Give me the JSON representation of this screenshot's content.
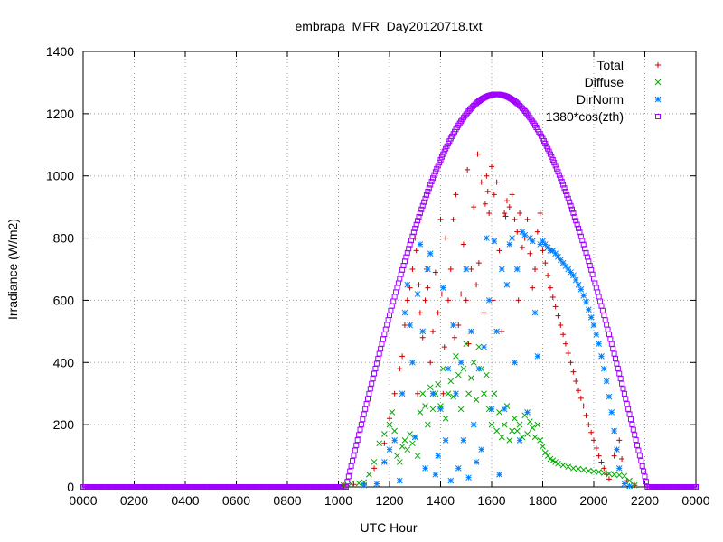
{
  "chart_data": {
    "type": "scatter",
    "title": "embrapa_MFR_Day20120718.txt",
    "xlabel": "UTC Hour",
    "ylabel": "Irradiance (W/m2)",
    "xlim": [
      0,
      24
    ],
    "ylim": [
      0,
      1400
    ],
    "x_ticks": [
      0,
      2,
      4,
      6,
      8,
      10,
      12,
      14,
      16,
      18,
      20,
      22,
      24
    ],
    "x_tick_labels": [
      "0000",
      "0200",
      "0400",
      "0600",
      "0800",
      "1000",
      "1200",
      "1400",
      "1600",
      "1800",
      "2000",
      "2200",
      "0000"
    ],
    "y_ticks": [
      0,
      200,
      400,
      600,
      800,
      1000,
      1200,
      1400
    ],
    "y_tick_labels": [
      "0",
      "200",
      "400",
      "600",
      "800",
      "1000",
      "1200",
      "1400"
    ],
    "grid": true,
    "legend_position": "top-right",
    "series": [
      {
        "name": "Total",
        "marker": "plus",
        "color": "#cc0000",
        "points": [
          [
            10.2,
            5
          ],
          [
            10.6,
            8
          ],
          [
            11.0,
            10
          ],
          [
            11.4,
            60
          ],
          [
            11.8,
            140
          ],
          [
            12.0,
            220
          ],
          [
            12.2,
            300
          ],
          [
            12.4,
            380
          ],
          [
            12.5,
            420
          ],
          [
            12.6,
            520
          ],
          [
            12.7,
            600
          ],
          [
            12.8,
            640
          ],
          [
            12.9,
            700
          ],
          [
            13.0,
            800
          ],
          [
            13.05,
            760
          ],
          [
            13.1,
            300
          ],
          [
            13.15,
            650
          ],
          [
            13.2,
            560
          ],
          [
            13.3,
            480
          ],
          [
            13.4,
            600
          ],
          [
            13.45,
            700
          ],
          [
            13.5,
            640
          ],
          [
            13.6,
            400
          ],
          [
            13.7,
            500
          ],
          [
            13.8,
            690
          ],
          [
            13.9,
            560
          ],
          [
            14.0,
            860
          ],
          [
            14.05,
            620
          ],
          [
            14.1,
            300
          ],
          [
            14.15,
            450
          ],
          [
            14.2,
            800
          ],
          [
            14.3,
            600
          ],
          [
            14.4,
            700
          ],
          [
            14.5,
            860
          ],
          [
            14.55,
            480
          ],
          [
            14.6,
            940
          ],
          [
            14.7,
            520
          ],
          [
            14.8,
            620
          ],
          [
            14.9,
            780
          ],
          [
            15.0,
            600
          ],
          [
            15.05,
            1020
          ],
          [
            15.1,
            460
          ],
          [
            15.2,
            700
          ],
          [
            15.3,
            900
          ],
          [
            15.4,
            650
          ],
          [
            15.45,
            1070
          ],
          [
            15.5,
            720
          ],
          [
            15.6,
            980
          ],
          [
            15.7,
            560
          ],
          [
            15.75,
            910
          ],
          [
            15.8,
            1000
          ],
          [
            15.85,
            950
          ],
          [
            15.9,
            880
          ],
          [
            16.0,
            1030
          ],
          [
            16.05,
            600
          ],
          [
            16.1,
            940
          ],
          [
            16.2,
            980
          ],
          [
            16.3,
            760
          ],
          [
            16.4,
            500
          ],
          [
            16.5,
            880
          ],
          [
            16.55,
            870
          ],
          [
            16.6,
            920
          ],
          [
            16.7,
            900
          ],
          [
            16.8,
            940
          ],
          [
            16.9,
            860
          ],
          [
            17.0,
            820
          ],
          [
            17.05,
            600
          ],
          [
            17.1,
            880
          ],
          [
            17.2,
            770
          ],
          [
            17.3,
            800
          ],
          [
            17.4,
            860
          ],
          [
            17.5,
            750
          ],
          [
            17.6,
            640
          ],
          [
            17.7,
            700
          ],
          [
            17.8,
            820
          ],
          [
            17.9,
            880
          ],
          [
            18.0,
            760
          ],
          [
            18.1,
            720
          ],
          [
            18.2,
            680
          ],
          [
            18.3,
            640
          ],
          [
            18.4,
            610
          ],
          [
            18.5,
            580
          ],
          [
            18.6,
            550
          ],
          [
            18.7,
            520
          ],
          [
            18.8,
            490
          ],
          [
            18.9,
            460
          ],
          [
            19.0,
            430
          ],
          [
            19.1,
            400
          ],
          [
            19.2,
            370
          ],
          [
            19.3,
            340
          ],
          [
            19.4,
            310
          ],
          [
            19.5,
            285
          ],
          [
            19.6,
            260
          ],
          [
            19.7,
            230
          ],
          [
            19.8,
            200
          ],
          [
            19.9,
            175
          ],
          [
            20.0,
            150
          ],
          [
            20.1,
            125
          ],
          [
            20.2,
            100
          ],
          [
            20.3,
            80
          ],
          [
            20.4,
            60
          ],
          [
            20.5,
            40
          ],
          [
            20.6,
            25
          ],
          [
            20.8,
            100
          ],
          [
            20.9,
            120
          ],
          [
            21.0,
            150
          ],
          [
            21.1,
            90
          ],
          [
            21.3,
            20
          ],
          [
            21.6,
            5
          ]
        ]
      },
      {
        "name": "Diffuse",
        "marker": "cross",
        "color": "#00aa00",
        "points": [
          [
            10.2,
            5
          ],
          [
            10.5,
            10
          ],
          [
            10.8,
            12
          ],
          [
            11.0,
            15
          ],
          [
            11.2,
            40
          ],
          [
            11.4,
            80
          ],
          [
            11.6,
            140
          ],
          [
            11.8,
            170
          ],
          [
            12.0,
            200
          ],
          [
            12.1,
            240
          ],
          [
            12.2,
            180
          ],
          [
            12.3,
            100
          ],
          [
            12.4,
            80
          ],
          [
            12.5,
            130
          ],
          [
            12.6,
            150
          ],
          [
            12.7,
            120
          ],
          [
            12.8,
            170
          ],
          [
            12.9,
            140
          ],
          [
            13.0,
            160
          ],
          [
            13.1,
            100
          ],
          [
            13.2,
            240
          ],
          [
            13.3,
            300
          ],
          [
            13.4,
            260
          ],
          [
            13.5,
            200
          ],
          [
            13.6,
            320
          ],
          [
            13.7,
            250
          ],
          [
            13.8,
            300
          ],
          [
            13.9,
            330
          ],
          [
            14.0,
            260
          ],
          [
            14.1,
            380
          ],
          [
            14.2,
            220
          ],
          [
            14.3,
            300
          ],
          [
            14.4,
            340
          ],
          [
            14.5,
            290
          ],
          [
            14.6,
            420
          ],
          [
            14.7,
            360
          ],
          [
            14.8,
            250
          ],
          [
            14.9,
            380
          ],
          [
            15.0,
            460
          ],
          [
            15.1,
            300
          ],
          [
            15.2,
            350
          ],
          [
            15.3,
            400
          ],
          [
            15.4,
            280
          ],
          [
            15.5,
            450
          ],
          [
            15.6,
            380
          ],
          [
            15.7,
            300
          ],
          [
            15.8,
            360
          ],
          [
            15.9,
            250
          ],
          [
            16.0,
            200
          ],
          [
            16.1,
            300
          ],
          [
            16.2,
            180
          ],
          [
            16.3,
            240
          ],
          [
            16.4,
            160
          ],
          [
            16.5,
            200
          ],
          [
            16.6,
            260
          ],
          [
            16.7,
            150
          ],
          [
            16.8,
            180
          ],
          [
            16.9,
            220
          ],
          [
            17.0,
            180
          ],
          [
            17.1,
            200
          ],
          [
            17.2,
            160
          ],
          [
            17.3,
            230
          ],
          [
            17.4,
            170
          ],
          [
            17.5,
            210
          ],
          [
            17.6,
            190
          ],
          [
            17.7,
            160
          ],
          [
            17.8,
            200
          ],
          [
            17.9,
            150
          ],
          [
            18.0,
            130
          ],
          [
            18.1,
            110
          ],
          [
            18.2,
            100
          ],
          [
            18.3,
            90
          ],
          [
            18.4,
            85
          ],
          [
            18.5,
            80
          ],
          [
            18.6,
            75
          ],
          [
            18.8,
            70
          ],
          [
            19.0,
            65
          ],
          [
            19.2,
            60
          ],
          [
            19.4,
            58
          ],
          [
            19.6,
            55
          ],
          [
            19.8,
            52
          ],
          [
            20.0,
            50
          ],
          [
            20.2,
            48
          ],
          [
            20.4,
            45
          ],
          [
            20.6,
            42
          ],
          [
            20.8,
            40
          ],
          [
            21.0,
            38
          ],
          [
            21.2,
            35
          ],
          [
            21.4,
            20
          ],
          [
            21.6,
            5
          ]
        ]
      },
      {
        "name": "DirNorm",
        "marker": "star",
        "color": "#0080ff",
        "points": [
          [
            11.0,
            5
          ],
          [
            11.5,
            10
          ],
          [
            11.8,
            80
          ],
          [
            12.0,
            120
          ],
          [
            12.2,
            150
          ],
          [
            12.4,
            20
          ],
          [
            12.5,
            300
          ],
          [
            12.6,
            560
          ],
          [
            12.7,
            650
          ],
          [
            12.8,
            520
          ],
          [
            12.9,
            400
          ],
          [
            13.0,
            160
          ],
          [
            13.1,
            620
          ],
          [
            13.2,
            780
          ],
          [
            13.3,
            500
          ],
          [
            13.4,
            60
          ],
          [
            13.5,
            700
          ],
          [
            13.6,
            750
          ],
          [
            13.7,
            300
          ],
          [
            13.8,
            40
          ],
          [
            13.9,
            100
          ],
          [
            14.0,
            250
          ],
          [
            14.1,
            640
          ],
          [
            14.2,
            150
          ],
          [
            14.3,
            380
          ],
          [
            14.4,
            20
          ],
          [
            14.5,
            520
          ],
          [
            14.6,
            300
          ],
          [
            14.7,
            60
          ],
          [
            14.8,
            400
          ],
          [
            14.9,
            150
          ],
          [
            15.0,
            700
          ],
          [
            15.1,
            30
          ],
          [
            15.2,
            500
          ],
          [
            15.3,
            200
          ],
          [
            15.4,
            80
          ],
          [
            15.5,
            380
          ],
          [
            15.6,
            120
          ],
          [
            15.7,
            450
          ],
          [
            15.8,
            800
          ],
          [
            15.9,
            600
          ],
          [
            16.0,
            250
          ],
          [
            16.1,
            790
          ],
          [
            16.2,
            500
          ],
          [
            16.3,
            40
          ],
          [
            16.4,
            700
          ],
          [
            16.5,
            250
          ],
          [
            16.6,
            650
          ],
          [
            16.7,
            780
          ],
          [
            16.8,
            800
          ],
          [
            16.9,
            400
          ],
          [
            17.0,
            700
          ],
          [
            17.1,
            150
          ],
          [
            17.2,
            820
          ],
          [
            17.3,
            810
          ],
          [
            17.4,
            240
          ],
          [
            17.5,
            800
          ],
          [
            17.6,
            790
          ],
          [
            17.7,
            560
          ],
          [
            17.8,
            420
          ],
          [
            17.9,
            780
          ],
          [
            18.0,
            790
          ],
          [
            18.1,
            780
          ],
          [
            18.2,
            770
          ],
          [
            18.3,
            760
          ],
          [
            18.4,
            760
          ],
          [
            18.5,
            750
          ],
          [
            18.6,
            740
          ],
          [
            18.7,
            730
          ],
          [
            18.8,
            720
          ],
          [
            18.9,
            710
          ],
          [
            19.0,
            700
          ],
          [
            19.1,
            690
          ],
          [
            19.2,
            680
          ],
          [
            19.3,
            665
          ],
          [
            19.4,
            650
          ],
          [
            19.5,
            635
          ],
          [
            19.6,
            615
          ],
          [
            19.7,
            595
          ],
          [
            19.8,
            570
          ],
          [
            19.9,
            545
          ],
          [
            20.0,
            520
          ],
          [
            20.1,
            490
          ],
          [
            20.2,
            460
          ],
          [
            20.3,
            420
          ],
          [
            20.4,
            380
          ],
          [
            20.5,
            340
          ],
          [
            20.6,
            290
          ],
          [
            20.7,
            240
          ],
          [
            20.8,
            180
          ],
          [
            20.9,
            120
          ],
          [
            21.0,
            60
          ],
          [
            21.2,
            10
          ],
          [
            21.4,
            3
          ]
        ]
      },
      {
        "name": "1380*cos(zth)",
        "marker": "square",
        "color": "#a000ff",
        "curve": {
          "peak_x": 16.2,
          "peak_y": 1262,
          "start_x": 10.3,
          "end_x": 22.1
        }
      }
    ]
  }
}
